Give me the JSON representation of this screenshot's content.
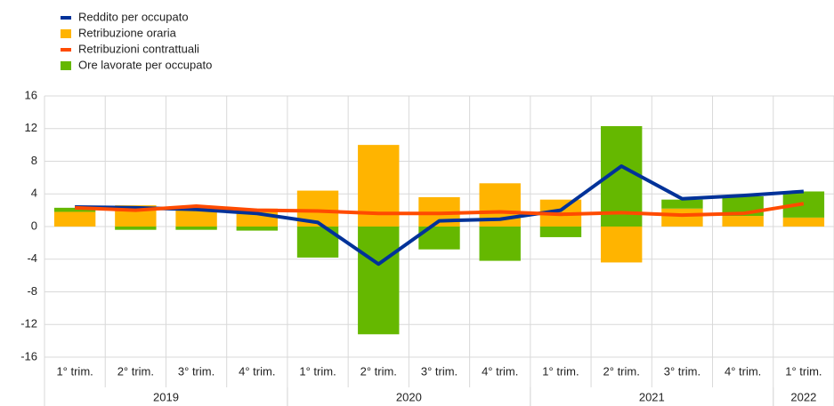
{
  "chart_data": {
    "type": "bar",
    "categories": [
      "1° trim.",
      "2° trim.",
      "3° trim.",
      "4° trim.",
      "1° trim.",
      "2° trim.",
      "3° trim.",
      "4° trim.",
      "1° trim.",
      "2° trim.",
      "3° trim.",
      "4° trim.",
      "1° trim."
    ],
    "groups": [
      {
        "label": "2019",
        "span": 4
      },
      {
        "label": "2020",
        "span": 4
      },
      {
        "label": "2021",
        "span": 4
      },
      {
        "label": "2022",
        "span": 1
      }
    ],
    "series": [
      {
        "name": "Reddito per occupato",
        "type": "line",
        "color": "#003299",
        "values": [
          2.4,
          2.3,
          2.1,
          1.6,
          0.5,
          -4.6,
          0.7,
          0.9,
          2.0,
          7.4,
          3.4,
          3.8,
          4.3
        ]
      },
      {
        "name": "Retribuzione oraria",
        "type": "bar",
        "color": "#ffb400",
        "values": [
          1.8,
          2.6,
          2.5,
          2.2,
          4.4,
          10.0,
          3.6,
          5.3,
          3.3,
          -4.4,
          2.2,
          1.3,
          1.1
        ]
      },
      {
        "name": "Retribuzioni contrattuali",
        "type": "line",
        "color": "#ff4b00",
        "values": [
          2.3,
          2.0,
          2.5,
          2.0,
          1.9,
          1.6,
          1.6,
          1.8,
          1.5,
          1.7,
          1.4,
          1.6,
          2.8
        ]
      },
      {
        "name": "Ore lavorate per occupato",
        "type": "bar",
        "color": "#65b800",
        "values": [
          0.5,
          -0.4,
          -0.4,
          -0.5,
          -3.8,
          -13.2,
          -2.8,
          -4.2,
          -1.3,
          12.3,
          1.1,
          2.4,
          3.2
        ]
      }
    ],
    "ylim": [
      -16,
      16
    ],
    "yticks": [
      16,
      12,
      8,
      4,
      0,
      -4,
      -8,
      -12,
      -16
    ],
    "grid": true
  }
}
